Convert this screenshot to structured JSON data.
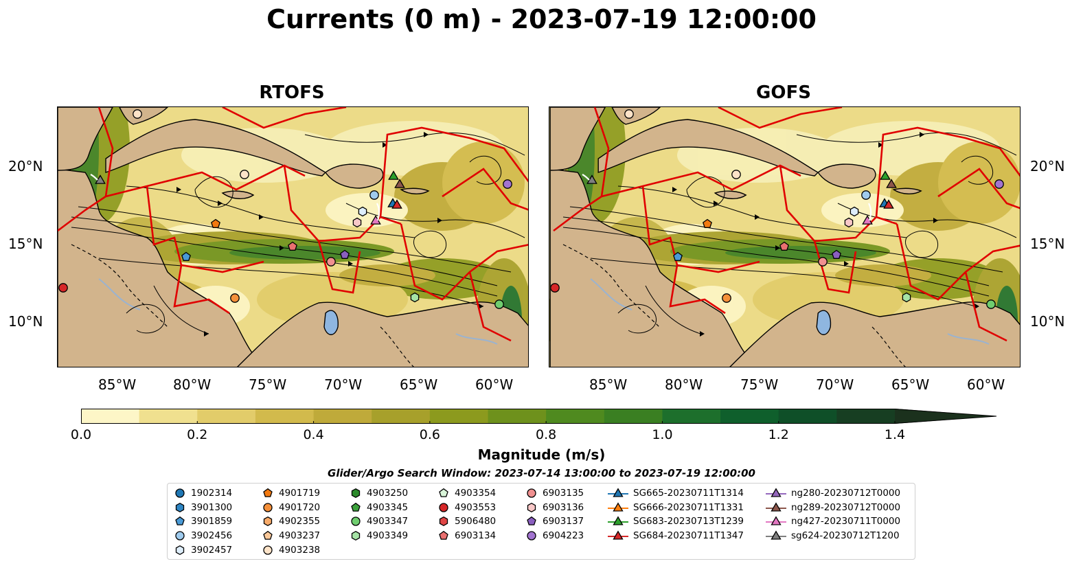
{
  "title": "Currents (0 m) - 2023-07-19 12:00:00",
  "panels": [
    {
      "title": "RTOFS"
    },
    {
      "title": "GOFS"
    }
  ],
  "axes": {
    "lon_labels": [
      "85°W",
      "80°W",
      "75°W",
      "70°W",
      "65°W",
      "60°W"
    ],
    "lat_labels": [
      "20°N",
      "15°N",
      "10°N"
    ]
  },
  "colorbar": {
    "label": "Magnitude (m/s)",
    "tick_labels": [
      "0.0",
      "0.2",
      "0.4",
      "0.6",
      "0.8",
      "1.0",
      "1.2",
      "1.4"
    ],
    "range": [
      0.0,
      1.5
    ],
    "colors": [
      "#fdf6c7",
      "#f0e08f",
      "#e2cc6a",
      "#d2ba4c",
      "#bfaa3a",
      "#a7a02b",
      "#8c9a1e",
      "#6e911c",
      "#4f8a1f",
      "#3a7f22",
      "#1d6f2c",
      "#0f5f2c",
      "#0f4f28",
      "#173e22",
      "#1b311d"
    ]
  },
  "search_window": "Glider/Argo Search Window: 2023-07-14 13:00:00 to 2023-07-19 12:00:00",
  "legend": {
    "columns": [
      [
        {
          "label": "1902314",
          "marker": "circle",
          "color": "#1f77b4"
        },
        {
          "label": "3901300",
          "marker": "hexagon",
          "color": "#2f86c4"
        },
        {
          "label": "3901859",
          "marker": "pentagon",
          "color": "#4a9ad6"
        },
        {
          "label": "3902456",
          "marker": "circle",
          "color": "#9fcbee"
        },
        {
          "label": "3902457",
          "marker": "hexagon",
          "color": "#deeefb"
        }
      ],
      [
        {
          "label": "4901719",
          "marker": "pentagon",
          "color": "#f2790f"
        },
        {
          "label": "4901720",
          "marker": "circle",
          "color": "#f5903a"
        },
        {
          "label": "4902355",
          "marker": "hexagon",
          "color": "#f8ab6a"
        },
        {
          "label": "4903237",
          "marker": "pentagon",
          "color": "#fbc99a"
        },
        {
          "label": "4903238",
          "marker": "circle",
          "color": "#fde3c8"
        }
      ],
      [
        {
          "label": "4903250",
          "marker": "hexagon",
          "color": "#2b8a2b"
        },
        {
          "label": "4903345",
          "marker": "pentagon",
          "color": "#3da23d"
        },
        {
          "label": "4903347",
          "marker": "circle",
          "color": "#6fcd6f"
        },
        {
          "label": "4903349",
          "marker": "hexagon",
          "color": "#a6e3a6"
        }
      ],
      [
        {
          "label": "4903354",
          "marker": "pentagon",
          "color": "#d9f5d9"
        },
        {
          "label": "4903553",
          "marker": "circle",
          "color": "#d62728"
        },
        {
          "label": "5906480",
          "marker": "hexagon",
          "color": "#e04646"
        },
        {
          "label": "6903134",
          "marker": "pentagon",
          "color": "#ea7070"
        }
      ],
      [
        {
          "label": "6903135",
          "marker": "circle",
          "color": "#f09090"
        },
        {
          "label": "6903136",
          "marker": "hexagon",
          "color": "#f8c8c8"
        },
        {
          "label": "6903137",
          "marker": "pentagon",
          "color": "#8a5fbf"
        },
        {
          "label": "6904223",
          "marker": "circle",
          "color": "#a274d0"
        }
      ],
      [
        {
          "label": "SG665-20230711T1314",
          "marker": "triangle",
          "color": "#1f77b4"
        },
        {
          "label": "SG666-20230711T1331",
          "marker": "triangle",
          "color": "#ff7f0e"
        },
        {
          "label": "SG683-20230713T1239",
          "marker": "triangle",
          "color": "#2ca02c"
        },
        {
          "label": "SG684-20230711T1347",
          "marker": "triangle",
          "color": "#d62728"
        }
      ],
      [
        {
          "label": "ng280-20230712T0000",
          "marker": "triangle",
          "color": "#9467bd"
        },
        {
          "label": "ng289-20230712T0000",
          "marker": "triangle",
          "color": "#8c564b"
        },
        {
          "label": "ng427-20230711T0000",
          "marker": "triangle",
          "color": "#e377c2"
        },
        {
          "label": "sg624-20230712T1200",
          "marker": "triangle",
          "color": "#7f7f7f"
        }
      ]
    ]
  }
}
